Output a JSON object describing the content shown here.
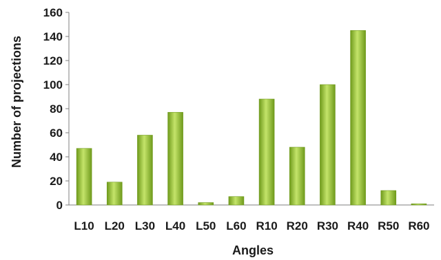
{
  "chart_data": {
    "type": "bar",
    "title": "",
    "xlabel": "Angles",
    "ylabel": "Number of projections",
    "categories": [
      "L10",
      "L20",
      "L30",
      "L40",
      "L50",
      "L60",
      "R10",
      "R20",
      "R30",
      "R40",
      "R50",
      "R60"
    ],
    "values": [
      47,
      19,
      58,
      77,
      2,
      7,
      88,
      48,
      100,
      145,
      12,
      1
    ],
    "ylim": [
      0,
      160
    ],
    "yticks": [
      0,
      20,
      40,
      60,
      80,
      100,
      120,
      140,
      160
    ],
    "grid": false,
    "legend": "none",
    "bar_color_light": "#c4e46a",
    "bar_color_dark": "#6f9a1c",
    "axis_color": "#7f7f7f"
  }
}
